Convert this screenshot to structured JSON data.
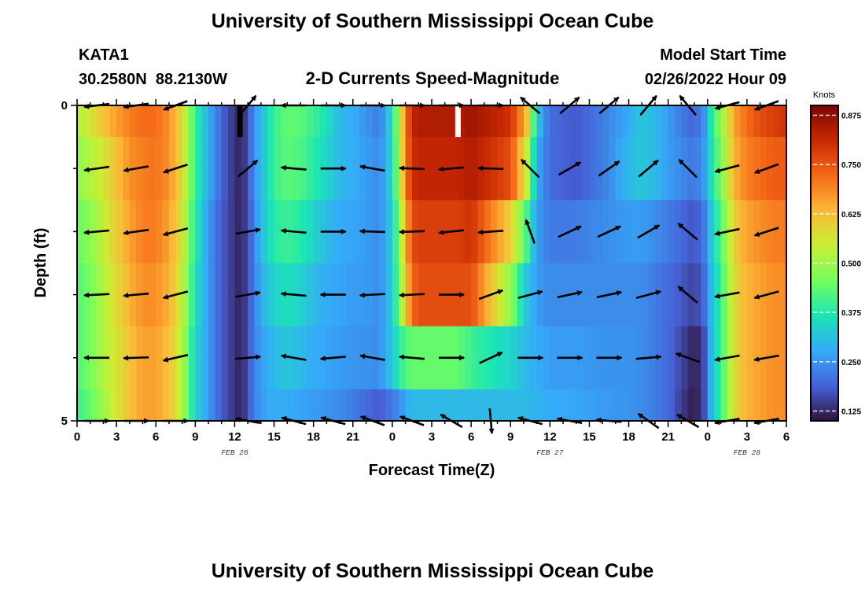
{
  "header": {
    "title": "University of Southern Mississippi Ocean Cube",
    "station_id": "KATA1",
    "station_coords": "30.2580N  88.2130W",
    "product": "2-D Currents Speed-Magnitude",
    "model_start_label": "Model Start Time",
    "model_start_value": "02/26/2022 Hour 09"
  },
  "footer": {
    "repeat_title": "University of Southern Mississippi Ocean Cube"
  },
  "chart_data": {
    "type": "heatmap",
    "xlabel": "Forecast Time(Z)",
    "ylabel": "Depth (ft)",
    "x_range_hours": [
      0,
      54
    ],
    "x_ticks": [
      {
        "h": 0,
        "label": "0"
      },
      {
        "h": 3,
        "label": "3"
      },
      {
        "h": 6,
        "label": "6"
      },
      {
        "h": 9,
        "label": "9"
      },
      {
        "h": 12,
        "label": "12"
      },
      {
        "h": 15,
        "label": "15"
      },
      {
        "h": 18,
        "label": "18"
      },
      {
        "h": 21,
        "label": "21"
      },
      {
        "h": 24,
        "label": "0"
      },
      {
        "h": 27,
        "label": "3"
      },
      {
        "h": 30,
        "label": "6"
      },
      {
        "h": 33,
        "label": "9"
      },
      {
        "h": 36,
        "label": "12"
      },
      {
        "h": 39,
        "label": "15"
      },
      {
        "h": 42,
        "label": "18"
      },
      {
        "h": 45,
        "label": "21"
      },
      {
        "h": 48,
        "label": "0"
      },
      {
        "h": 51,
        "label": "3"
      },
      {
        "h": 54,
        "label": "6"
      }
    ],
    "date_labels": [
      {
        "h": 12,
        "label": "FEB 26"
      },
      {
        "h": 36,
        "label": "FEB 27"
      },
      {
        "h": 51,
        "label": "FEB 28"
      }
    ],
    "y_range_ft": [
      0,
      5
    ],
    "y_ticks": [
      {
        "v": 0,
        "label": "0"
      },
      {
        "v": 5,
        "label": "5"
      }
    ],
    "y_minor_ticks": [
      1,
      2,
      3,
      4
    ],
    "colorbar": {
      "unit": "Knots",
      "range": [
        0.1,
        0.9
      ],
      "ticks": [
        0.125,
        0.25,
        0.375,
        0.5,
        0.625,
        0.75,
        0.875
      ],
      "tick_labels": [
        "0.125",
        "0.250",
        "0.375",
        "0.500",
        "0.625",
        "0.750",
        "0.875"
      ],
      "colors": [
        "#30123b",
        "#4662d8",
        "#35abf8",
        "#1be5b5",
        "#74fe5d",
        "#c9ef34",
        "#fbb938",
        "#f56918",
        "#c92903",
        "#7a0403"
      ]
    },
    "depth_bands_ft": [
      [
        0,
        0.5
      ],
      [
        0.5,
        1.5
      ],
      [
        1.5,
        2.5
      ],
      [
        2.5,
        3.5
      ],
      [
        3.5,
        4.5
      ],
      [
        4.5,
        5
      ]
    ],
    "time_profile": {
      "hours": [
        0,
        1,
        2,
        3,
        4,
        5,
        6,
        7,
        8,
        9,
        10,
        10.7,
        11.5,
        12.4,
        13,
        13.4,
        14,
        15,
        16,
        17,
        18,
        19,
        20,
        21,
        22,
        23,
        23.5,
        24,
        24.5,
        25,
        25.5,
        26,
        29,
        30,
        33,
        34.2,
        35,
        36,
        38,
        40,
        42,
        43,
        44,
        45,
        46,
        46.6,
        47,
        47.6,
        48,
        48.3,
        49,
        49.6,
        50,
        51,
        52,
        53,
        54
      ],
      "bands": [
        [
          0.52,
          0.56,
          0.62,
          0.66,
          0.7,
          0.72,
          0.72,
          0.68,
          0.58,
          0.4,
          0.28,
          0.22,
          0.16,
          0.12,
          0.16,
          0.24,
          0.3,
          0.4,
          0.44,
          0.43,
          0.4,
          0.36,
          0.3,
          0.28,
          0.25,
          0.22,
          0.28,
          0.36,
          0.52,
          0.7,
          0.82,
          0.84,
          0.84,
          0.86,
          0.8,
          0.64,
          0.32,
          0.2,
          0.18,
          0.22,
          0.28,
          0.32,
          0.3,
          0.26,
          0.22,
          0.2,
          0.2,
          0.22,
          0.3,
          0.38,
          0.48,
          0.58,
          0.66,
          0.72,
          0.76,
          0.78,
          0.8
        ],
        [
          0.48,
          0.52,
          0.56,
          0.62,
          0.68,
          0.7,
          0.71,
          0.68,
          0.58,
          0.4,
          0.28,
          0.22,
          0.16,
          0.12,
          0.16,
          0.24,
          0.3,
          0.4,
          0.43,
          0.42,
          0.38,
          0.34,
          0.3,
          0.28,
          0.26,
          0.24,
          0.28,
          0.36,
          0.5,
          0.7,
          0.8,
          0.82,
          0.82,
          0.84,
          0.76,
          0.56,
          0.28,
          0.2,
          0.18,
          0.22,
          0.3,
          0.32,
          0.3,
          0.26,
          0.24,
          0.22,
          0.22,
          0.24,
          0.3,
          0.36,
          0.46,
          0.56,
          0.64,
          0.7,
          0.72,
          0.74,
          0.74
        ],
        [
          0.44,
          0.48,
          0.54,
          0.6,
          0.66,
          0.7,
          0.7,
          0.66,
          0.56,
          0.38,
          0.26,
          0.2,
          0.16,
          0.12,
          0.16,
          0.22,
          0.3,
          0.38,
          0.4,
          0.38,
          0.34,
          0.3,
          0.28,
          0.27,
          0.26,
          0.24,
          0.28,
          0.34,
          0.46,
          0.64,
          0.76,
          0.78,
          0.78,
          0.8,
          0.6,
          0.42,
          0.26,
          0.22,
          0.22,
          0.24,
          0.26,
          0.26,
          0.24,
          0.22,
          0.2,
          0.18,
          0.18,
          0.2,
          0.26,
          0.32,
          0.42,
          0.52,
          0.6,
          0.66,
          0.68,
          0.7,
          0.7
        ],
        [
          0.42,
          0.46,
          0.52,
          0.58,
          0.64,
          0.68,
          0.68,
          0.64,
          0.54,
          0.36,
          0.26,
          0.2,
          0.16,
          0.12,
          0.16,
          0.22,
          0.28,
          0.34,
          0.36,
          0.34,
          0.3,
          0.28,
          0.27,
          0.26,
          0.26,
          0.24,
          0.28,
          0.34,
          0.44,
          0.6,
          0.72,
          0.76,
          0.76,
          0.76,
          0.48,
          0.32,
          0.26,
          0.24,
          0.24,
          0.24,
          0.24,
          0.24,
          0.22,
          0.2,
          0.18,
          0.16,
          0.16,
          0.18,
          0.24,
          0.3,
          0.4,
          0.5,
          0.58,
          0.64,
          0.66,
          0.68,
          0.68
        ],
        [
          0.42,
          0.46,
          0.52,
          0.56,
          0.62,
          0.66,
          0.66,
          0.62,
          0.52,
          0.34,
          0.26,
          0.2,
          0.16,
          0.12,
          0.16,
          0.22,
          0.26,
          0.3,
          0.32,
          0.3,
          0.28,
          0.27,
          0.26,
          0.25,
          0.25,
          0.24,
          0.28,
          0.32,
          0.38,
          0.42,
          0.44,
          0.44,
          0.44,
          0.4,
          0.34,
          0.3,
          0.28,
          0.26,
          0.26,
          0.25,
          0.25,
          0.24,
          0.22,
          0.2,
          0.16,
          0.13,
          0.12,
          0.14,
          0.22,
          0.3,
          0.4,
          0.5,
          0.58,
          0.64,
          0.66,
          0.68,
          0.68
        ],
        [
          0.4,
          0.44,
          0.5,
          0.56,
          0.62,
          0.66,
          0.66,
          0.62,
          0.52,
          0.34,
          0.26,
          0.2,
          0.16,
          0.12,
          0.16,
          0.22,
          0.26,
          0.28,
          0.28,
          0.27,
          0.26,
          0.25,
          0.24,
          0.22,
          0.2,
          0.18,
          0.2,
          0.22,
          0.24,
          0.28,
          0.3,
          0.3,
          0.3,
          0.3,
          0.3,
          0.3,
          0.29,
          0.28,
          0.27,
          0.26,
          0.25,
          0.24,
          0.22,
          0.2,
          0.15,
          0.12,
          0.11,
          0.14,
          0.22,
          0.3,
          0.4,
          0.5,
          0.58,
          0.64,
          0.66,
          0.68,
          0.68
        ]
      ]
    },
    "missing_data_marks": [
      {
        "h": 12.4,
        "depth_range_ft": [
          0,
          0.5
        ],
        "color": "#000000"
      },
      {
        "h": 29.0,
        "depth_range_ft": [
          0,
          0.5
        ],
        "color": "#ffffff"
      }
    ],
    "vector_hours": [
      1.5,
      4.5,
      7.5,
      13,
      16.5,
      19.5,
      22.5,
      25.5,
      28.5,
      31.5,
      34.5,
      37.5,
      40.5,
      43.5,
      46.5,
      49.5,
      52.5
    ],
    "vector_depths_ft": [
      0,
      1,
      2,
      3,
      4,
      5
    ],
    "vector_angles_deg": [
      [
        187,
        188,
        200,
        50,
        180,
        0,
        0,
        0,
        0,
        0,
        140,
        40,
        40,
        50,
        130,
        195,
        200
      ],
      [
        188,
        190,
        198,
        40,
        175,
        0,
        170,
        178,
        185,
        178,
        135,
        30,
        35,
        40,
        135,
        195,
        200
      ],
      [
        185,
        188,
        195,
        10,
        175,
        0,
        178,
        182,
        186,
        184,
        110,
        25,
        25,
        30,
        140,
        192,
        198
      ],
      [
        183,
        185,
        195,
        10,
        175,
        180,
        183,
        183,
        0,
        20,
        15,
        12,
        12,
        15,
        140,
        190,
        195
      ],
      [
        180,
        182,
        193,
        5,
        170,
        185,
        170,
        175,
        0,
        25,
        0,
        0,
        0,
        5,
        160,
        190,
        190
      ],
      [
        0,
        0,
        0,
        170,
        165,
        165,
        160,
        160,
        150,
        275,
        165,
        170,
        175,
        145,
        150,
        190,
        190
      ]
    ]
  }
}
